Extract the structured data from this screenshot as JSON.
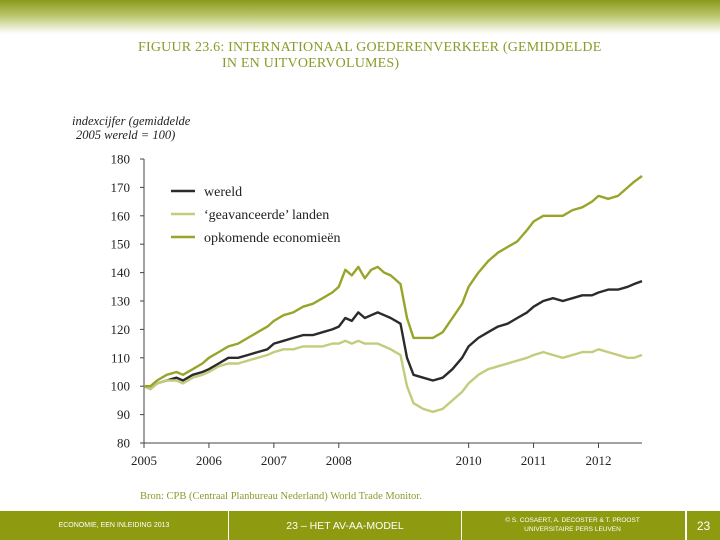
{
  "title_lines": [
    "FIGUUR 23.6: INTERNATIONAAL GOEDERENVERKEER (GEMIDDELDE",
    "IN EN UITVOERVOLUMES)"
  ],
  "footer": {
    "left": "ECONOMIE, EEN INLEIDING 2013",
    "center": "23 – HET AV-AA-MODEL",
    "right_line1": "© S. COSAERT, A. DECOSTER & T. PROOST",
    "right_line2": "UNIVERSITAIRE PERS LEUVEN",
    "page": "23"
  },
  "colors": {
    "wereld": "#2b2b2b",
    "geavanceerde": "#c4cc7c",
    "opkomende": "#99a42a",
    "accent": "#8e9a10"
  },
  "chart_data": {
    "type": "line",
    "title": "",
    "ylabel_lines": [
      "indexcijfer (gemiddelde",
      "2005 wereld = 100)"
    ],
    "xlabel": "",
    "source": "Bron: CPB (Centraal Planbureau Nederland) World Trade Monitor.",
    "ylim": [
      80,
      180
    ],
    "yticks": [
      80,
      90,
      100,
      110,
      120,
      130,
      140,
      150,
      160,
      170,
      180
    ],
    "xlim": [
      2005,
      2012.67
    ],
    "xticks": [
      2005,
      2006,
      2007,
      2008,
      2010,
      2011,
      2012
    ],
    "xtick_labels": [
      "2005",
      "2006",
      "2007",
      "2008",
      "2010",
      "2011",
      "2012"
    ],
    "legend_position": "upper-left",
    "grid": false,
    "series": [
      {
        "name": "wereld",
        "color_key": "wereld",
        "points": [
          [
            2005.0,
            100
          ],
          [
            2005.1,
            99
          ],
          [
            2005.2,
            101
          ],
          [
            2005.35,
            102
          ],
          [
            2005.5,
            103
          ],
          [
            2005.6,
            102
          ],
          [
            2005.75,
            104
          ],
          [
            2005.9,
            105
          ],
          [
            2006.0,
            106
          ],
          [
            2006.15,
            108
          ],
          [
            2006.3,
            110
          ],
          [
            2006.45,
            110
          ],
          [
            2006.6,
            111
          ],
          [
            2006.75,
            112
          ],
          [
            2006.9,
            113
          ],
          [
            2007.0,
            115
          ],
          [
            2007.15,
            116
          ],
          [
            2007.3,
            117
          ],
          [
            2007.45,
            118
          ],
          [
            2007.6,
            118
          ],
          [
            2007.75,
            119
          ],
          [
            2007.9,
            120
          ],
          [
            2008.0,
            121
          ],
          [
            2008.1,
            124
          ],
          [
            2008.2,
            123
          ],
          [
            2008.3,
            126
          ],
          [
            2008.4,
            124
          ],
          [
            2008.5,
            125
          ],
          [
            2008.6,
            126
          ],
          [
            2008.7,
            125
          ],
          [
            2008.8,
            124
          ],
          [
            2008.95,
            122
          ],
          [
            2009.05,
            110
          ],
          [
            2009.15,
            104
          ],
          [
            2009.3,
            103
          ],
          [
            2009.45,
            102
          ],
          [
            2009.6,
            103
          ],
          [
            2009.75,
            106
          ],
          [
            2009.9,
            110
          ],
          [
            2010.0,
            114
          ],
          [
            2010.15,
            117
          ],
          [
            2010.3,
            119
          ],
          [
            2010.45,
            121
          ],
          [
            2010.6,
            122
          ],
          [
            2010.75,
            124
          ],
          [
            2010.9,
            126
          ],
          [
            2011.0,
            128
          ],
          [
            2011.15,
            130
          ],
          [
            2011.3,
            131
          ],
          [
            2011.45,
            130
          ],
          [
            2011.6,
            131
          ],
          [
            2011.75,
            132
          ],
          [
            2011.9,
            132
          ],
          [
            2012.0,
            133
          ],
          [
            2012.15,
            134
          ],
          [
            2012.3,
            134
          ],
          [
            2012.45,
            135
          ],
          [
            2012.55,
            136
          ],
          [
            2012.67,
            137
          ]
        ]
      },
      {
        "name": "‘geavanceerde’ landen",
        "color_key": "geavanceerde",
        "points": [
          [
            2005.0,
            100
          ],
          [
            2005.1,
            99
          ],
          [
            2005.2,
            101
          ],
          [
            2005.35,
            102
          ],
          [
            2005.5,
            102
          ],
          [
            2005.6,
            101
          ],
          [
            2005.75,
            103
          ],
          [
            2005.9,
            104
          ],
          [
            2006.0,
            105
          ],
          [
            2006.15,
            107
          ],
          [
            2006.3,
            108
          ],
          [
            2006.45,
            108
          ],
          [
            2006.6,
            109
          ],
          [
            2006.75,
            110
          ],
          [
            2006.9,
            111
          ],
          [
            2007.0,
            112
          ],
          [
            2007.15,
            113
          ],
          [
            2007.3,
            113
          ],
          [
            2007.45,
            114
          ],
          [
            2007.6,
            114
          ],
          [
            2007.75,
            114
          ],
          [
            2007.9,
            115
          ],
          [
            2008.0,
            115
          ],
          [
            2008.1,
            116
          ],
          [
            2008.2,
            115
          ],
          [
            2008.3,
            116
          ],
          [
            2008.4,
            115
          ],
          [
            2008.5,
            115
          ],
          [
            2008.6,
            115
          ],
          [
            2008.7,
            114
          ],
          [
            2008.8,
            113
          ],
          [
            2008.95,
            111
          ],
          [
            2009.05,
            100
          ],
          [
            2009.15,
            94
          ],
          [
            2009.3,
            92
          ],
          [
            2009.45,
            91
          ],
          [
            2009.6,
            92
          ],
          [
            2009.75,
            95
          ],
          [
            2009.9,
            98
          ],
          [
            2010.0,
            101
          ],
          [
            2010.15,
            104
          ],
          [
            2010.3,
            106
          ],
          [
            2010.45,
            107
          ],
          [
            2010.6,
            108
          ],
          [
            2010.75,
            109
          ],
          [
            2010.9,
            110
          ],
          [
            2011.0,
            111
          ],
          [
            2011.15,
            112
          ],
          [
            2011.3,
            111
          ],
          [
            2011.45,
            110
          ],
          [
            2011.6,
            111
          ],
          [
            2011.75,
            112
          ],
          [
            2011.9,
            112
          ],
          [
            2012.0,
            113
          ],
          [
            2012.15,
            112
          ],
          [
            2012.3,
            111
          ],
          [
            2012.45,
            110
          ],
          [
            2012.55,
            110
          ],
          [
            2012.67,
            111
          ]
        ]
      },
      {
        "name": "opkomende economieën",
        "color_key": "opkomende",
        "points": [
          [
            2005.0,
            100
          ],
          [
            2005.1,
            100
          ],
          [
            2005.2,
            102
          ],
          [
            2005.35,
            104
          ],
          [
            2005.5,
            105
          ],
          [
            2005.6,
            104
          ],
          [
            2005.75,
            106
          ],
          [
            2005.9,
            108
          ],
          [
            2006.0,
            110
          ],
          [
            2006.15,
            112
          ],
          [
            2006.3,
            114
          ],
          [
            2006.45,
            115
          ],
          [
            2006.6,
            117
          ],
          [
            2006.75,
            119
          ],
          [
            2006.9,
            121
          ],
          [
            2007.0,
            123
          ],
          [
            2007.15,
            125
          ],
          [
            2007.3,
            126
          ],
          [
            2007.45,
            128
          ],
          [
            2007.6,
            129
          ],
          [
            2007.75,
            131
          ],
          [
            2007.9,
            133
          ],
          [
            2008.0,
            135
          ],
          [
            2008.1,
            141
          ],
          [
            2008.2,
            139
          ],
          [
            2008.3,
            142
          ],
          [
            2008.4,
            138
          ],
          [
            2008.5,
            141
          ],
          [
            2008.6,
            142
          ],
          [
            2008.7,
            140
          ],
          [
            2008.8,
            139
          ],
          [
            2008.95,
            136
          ],
          [
            2009.05,
            124
          ],
          [
            2009.15,
            117
          ],
          [
            2009.3,
            117
          ],
          [
            2009.45,
            117
          ],
          [
            2009.6,
            119
          ],
          [
            2009.75,
            124
          ],
          [
            2009.9,
            129
          ],
          [
            2010.0,
            135
          ],
          [
            2010.15,
            140
          ],
          [
            2010.3,
            144
          ],
          [
            2010.45,
            147
          ],
          [
            2010.6,
            149
          ],
          [
            2010.75,
            151
          ],
          [
            2010.9,
            155
          ],
          [
            2011.0,
            158
          ],
          [
            2011.15,
            160
          ],
          [
            2011.3,
            160
          ],
          [
            2011.45,
            160
          ],
          [
            2011.6,
            162
          ],
          [
            2011.75,
            163
          ],
          [
            2011.9,
            165
          ],
          [
            2012.0,
            167
          ],
          [
            2012.15,
            166
          ],
          [
            2012.3,
            167
          ],
          [
            2012.45,
            170
          ],
          [
            2012.55,
            172
          ],
          [
            2012.67,
            174
          ]
        ]
      }
    ]
  }
}
